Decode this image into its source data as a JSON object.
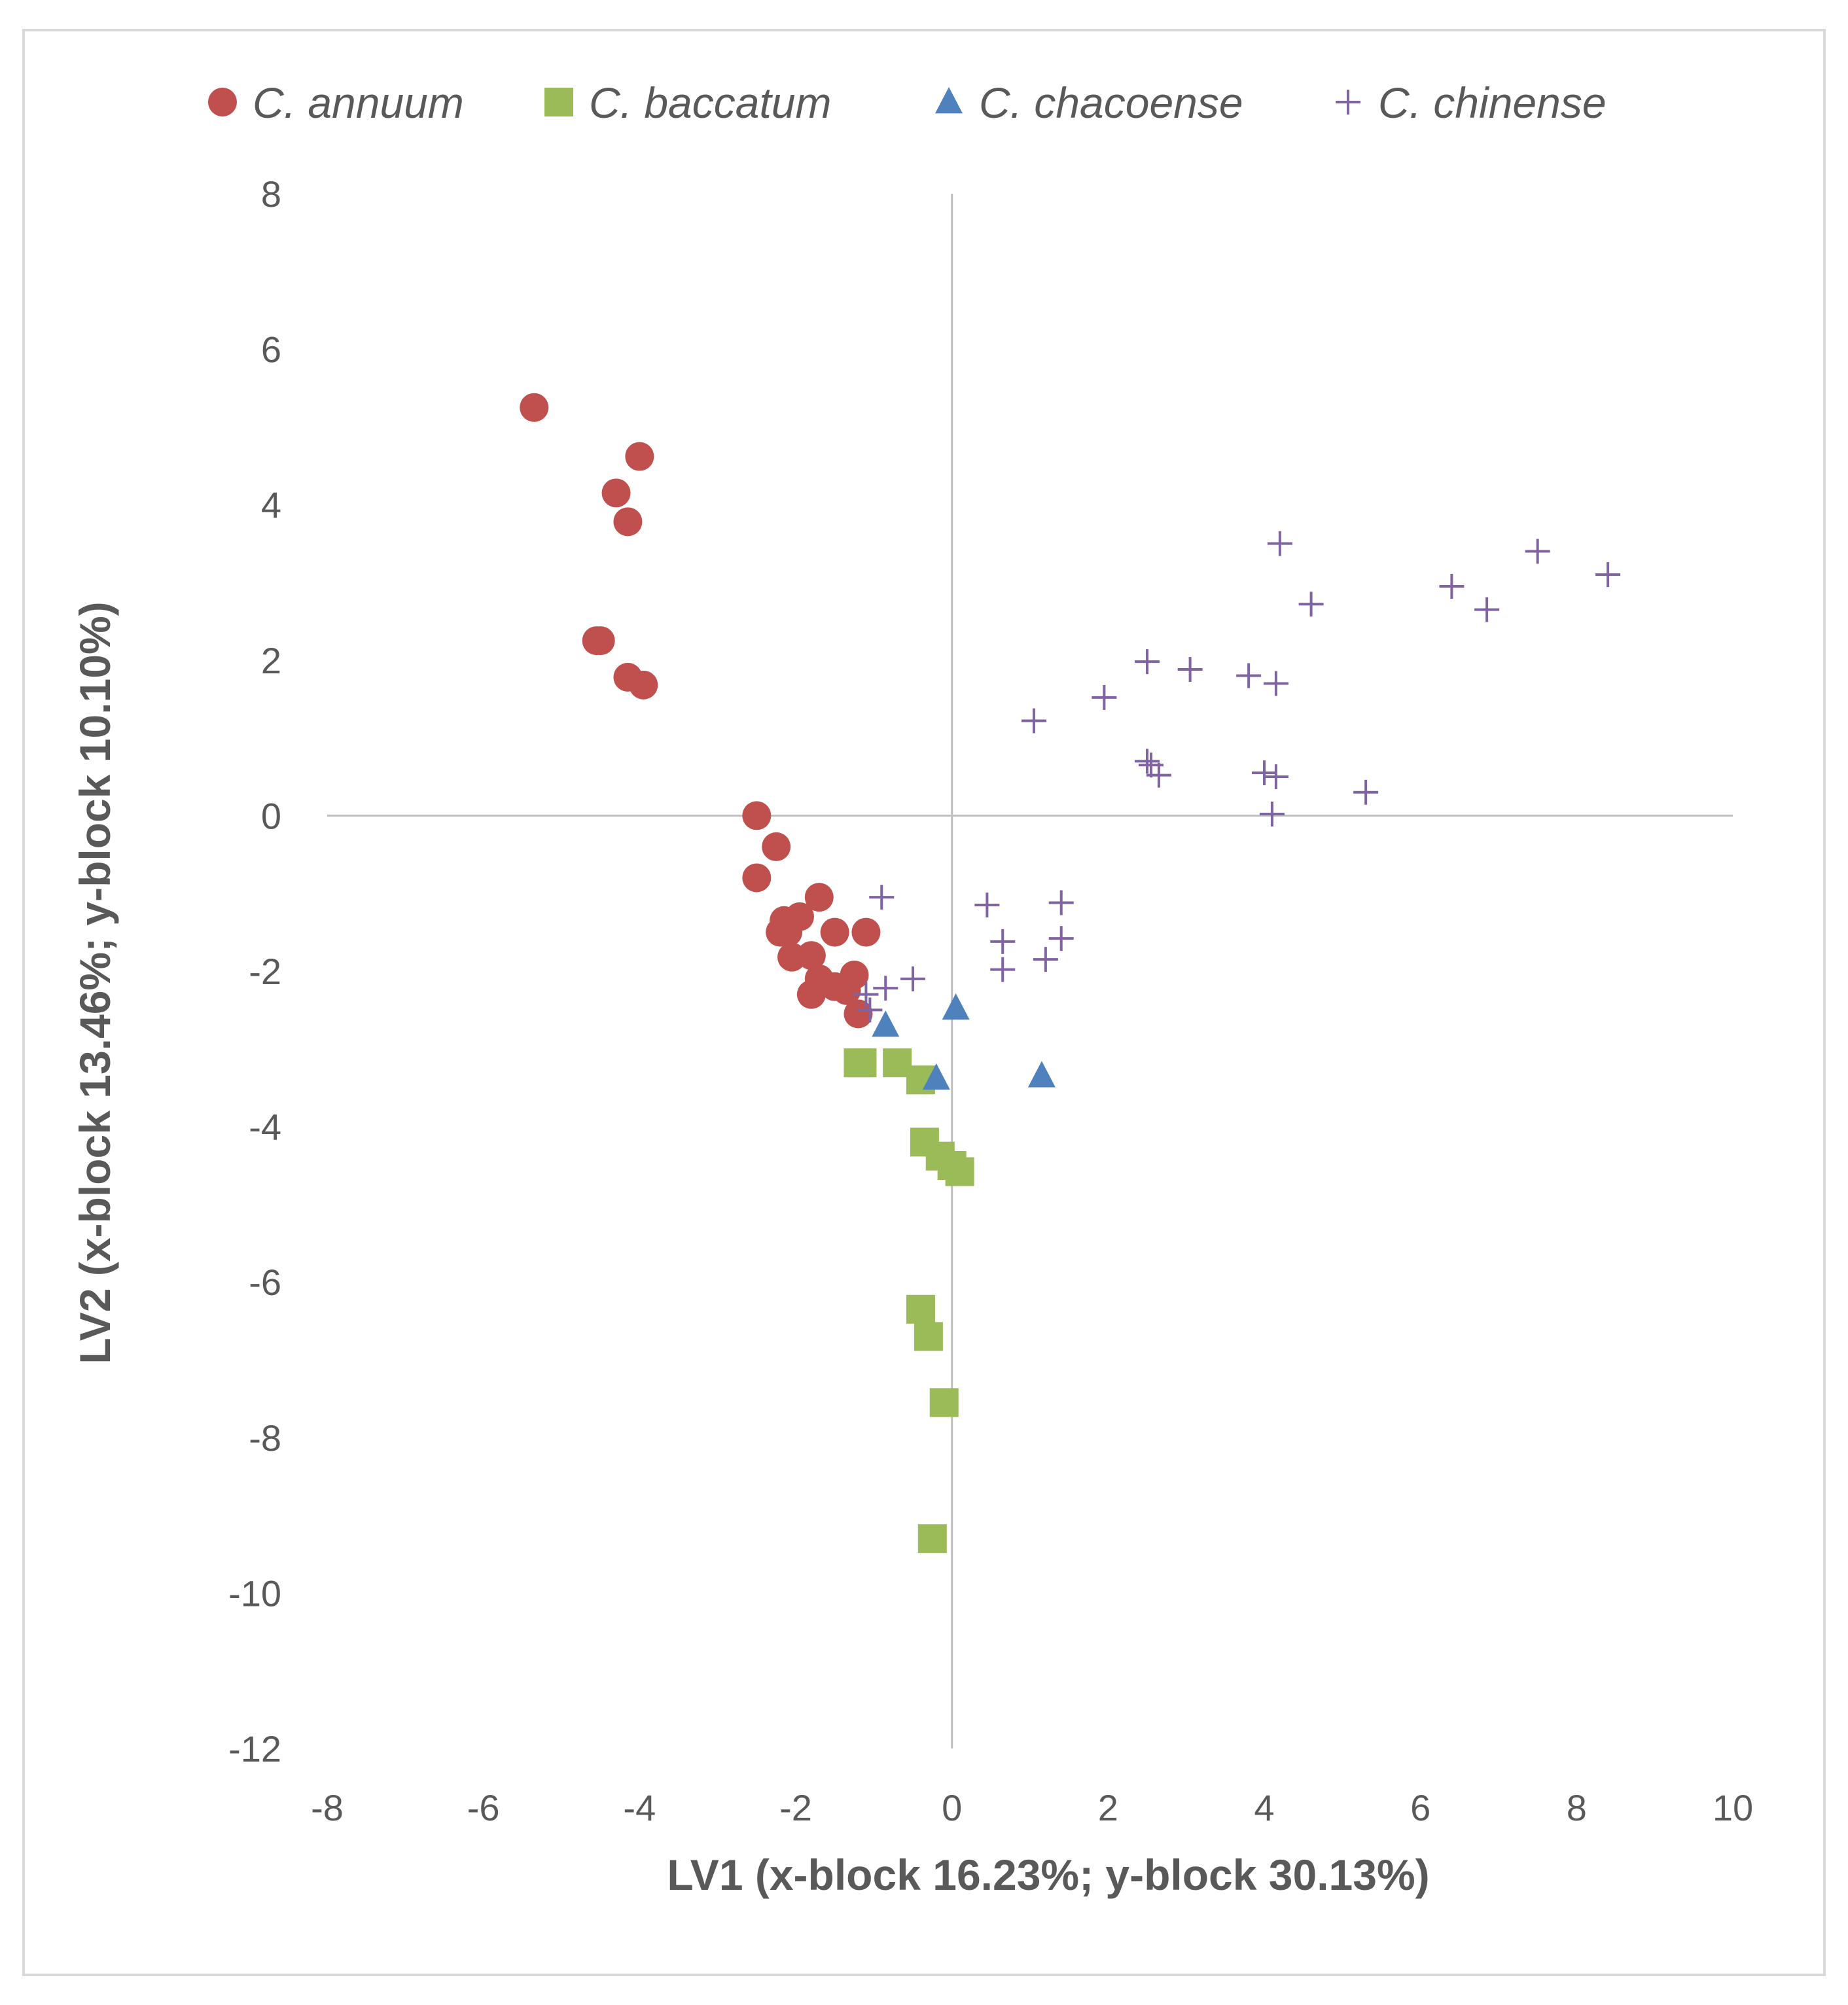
{
  "chart_data": {
    "type": "scatter",
    "title": "",
    "xlabel": "LV1 (x-block 16.23%; y-block 30.13%)",
    "ylabel": "LV2 (x-block 13.46%; y-block 10.10%)",
    "xlim": [
      -8,
      10
    ],
    "ylim": [
      -12,
      8
    ],
    "xticks": [
      -8,
      -6,
      -4,
      -2,
      0,
      2,
      4,
      6,
      8,
      10
    ],
    "yticks": [
      -12,
      -10,
      -8,
      -6,
      -4,
      -2,
      0,
      2,
      4,
      6,
      8
    ],
    "grid": false,
    "legend_position": "top",
    "series": [
      {
        "name": "C. annuum",
        "marker": "circle",
        "color": "#c0504d",
        "points": [
          [
            -5.35,
            5.25
          ],
          [
            -4.0,
            4.62
          ],
          [
            -4.3,
            4.15
          ],
          [
            -4.15,
            3.78
          ],
          [
            -4.55,
            2.25
          ],
          [
            -4.5,
            2.25
          ],
          [
            -4.15,
            1.78
          ],
          [
            -3.95,
            1.68
          ],
          [
            -2.5,
            0.0
          ],
          [
            -2.25,
            -0.4
          ],
          [
            -2.5,
            -0.8
          ],
          [
            -1.7,
            -1.05
          ],
          [
            -1.95,
            -1.3
          ],
          [
            -2.15,
            -1.35
          ],
          [
            -2.2,
            -1.5
          ],
          [
            -2.1,
            -1.5
          ],
          [
            -1.5,
            -1.5
          ],
          [
            -1.1,
            -1.5
          ],
          [
            -1.8,
            -1.8
          ],
          [
            -2.05,
            -1.82
          ],
          [
            -1.7,
            -2.1
          ],
          [
            -1.25,
            -2.05
          ],
          [
            -1.5,
            -2.2
          ],
          [
            -1.8,
            -2.3
          ],
          [
            -1.35,
            -2.25
          ],
          [
            -1.2,
            -2.55
          ]
        ]
      },
      {
        "name": "C. baccatum",
        "marker": "square",
        "color": "#9bbb59",
        "points": [
          [
            -1.2,
            -3.18
          ],
          [
            -1.15,
            -3.18
          ],
          [
            -0.7,
            -3.18
          ],
          [
            -0.4,
            -3.4
          ],
          [
            -0.35,
            -4.2
          ],
          [
            -0.15,
            -4.38
          ],
          [
            0.0,
            -4.5
          ],
          [
            0.1,
            -4.58
          ],
          [
            -0.4,
            -6.35
          ],
          [
            -0.3,
            -6.7
          ],
          [
            -0.1,
            -7.55
          ],
          [
            -0.25,
            -9.3
          ]
        ]
      },
      {
        "name": "C. chacoense",
        "marker": "triangle",
        "color": "#4f81bd",
        "points": [
          [
            -0.85,
            -2.7
          ],
          [
            0.05,
            -2.48
          ],
          [
            -0.2,
            -3.38
          ],
          [
            1.15,
            -3.35
          ]
        ]
      },
      {
        "name": "C. chinense",
        "marker": "plus",
        "color": "#8064a2",
        "points": [
          [
            4.2,
            3.5
          ],
          [
            7.5,
            3.4
          ],
          [
            8.4,
            3.1
          ],
          [
            6.4,
            2.95
          ],
          [
            6.85,
            2.65
          ],
          [
            4.6,
            2.72
          ],
          [
            2.5,
            1.98
          ],
          [
            3.05,
            1.88
          ],
          [
            3.8,
            1.8
          ],
          [
            4.15,
            1.7
          ],
          [
            1.95,
            1.52
          ],
          [
            1.05,
            1.22
          ],
          [
            2.5,
            0.7
          ],
          [
            2.55,
            0.65
          ],
          [
            2.65,
            0.52
          ],
          [
            4.0,
            0.55
          ],
          [
            4.15,
            0.5
          ],
          [
            5.3,
            0.3
          ],
          [
            4.1,
            0.02
          ],
          [
            -0.9,
            -1.05
          ],
          [
            0.45,
            -1.15
          ],
          [
            1.4,
            -1.12
          ],
          [
            0.65,
            -1.62
          ],
          [
            1.4,
            -1.58
          ],
          [
            0.65,
            -1.98
          ],
          [
            1.2,
            -1.85
          ],
          [
            -0.5,
            -2.1
          ],
          [
            -0.85,
            -2.22
          ],
          [
            -1.1,
            -2.3
          ],
          [
            -1.05,
            -2.5
          ]
        ]
      }
    ]
  }
}
